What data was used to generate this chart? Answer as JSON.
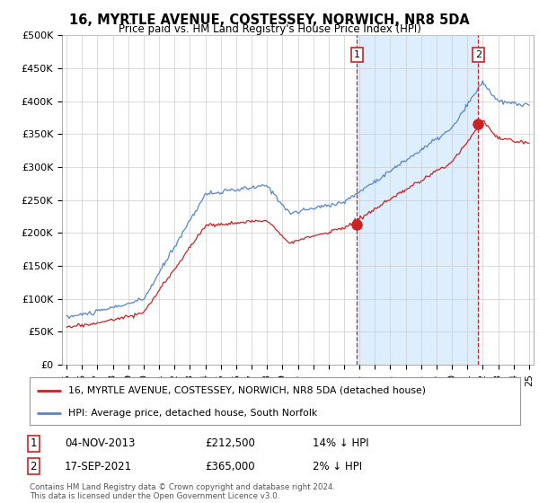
{
  "title": "16, MYRTLE AVENUE, COSTESSEY, NORWICH, NR8 5DA",
  "subtitle": "Price paid vs. HM Land Registry's House Price Index (HPI)",
  "ylabel_ticks": [
    "£0",
    "£50K",
    "£100K",
    "£150K",
    "£200K",
    "£250K",
    "£300K",
    "£350K",
    "£400K",
    "£450K",
    "£500K"
  ],
  "ytick_values": [
    0,
    50000,
    100000,
    150000,
    200000,
    250000,
    300000,
    350000,
    400000,
    450000,
    500000
  ],
  "ylim": [
    0,
    500000
  ],
  "xlim_start": 1994.7,
  "xlim_end": 2025.3,
  "hpi_color": "#5588cc",
  "price_color": "#cc2222",
  "shade_color": "#ddeeff",
  "point1_x": 2013.84,
  "point1_y": 212500,
  "point1_label": "1",
  "point2_x": 2021.71,
  "point2_y": 365000,
  "point2_label": "2",
  "legend_line1": "16, MYRTLE AVENUE, COSTESSEY, NORWICH, NR8 5DA (detached house)",
  "legend_line2": "HPI: Average price, detached house, South Norfolk",
  "table_row1": [
    "1",
    "04-NOV-2013",
    "£212,500",
    "14% ↓ HPI"
  ],
  "table_row2": [
    "2",
    "17-SEP-2021",
    "£365,000",
    "2% ↓ HPI"
  ],
  "footer": "Contains HM Land Registry data © Crown copyright and database right 2024.\nThis data is licensed under the Open Government Licence v3.0.",
  "background_color": "#ffffff",
  "grid_color": "#cccccc"
}
